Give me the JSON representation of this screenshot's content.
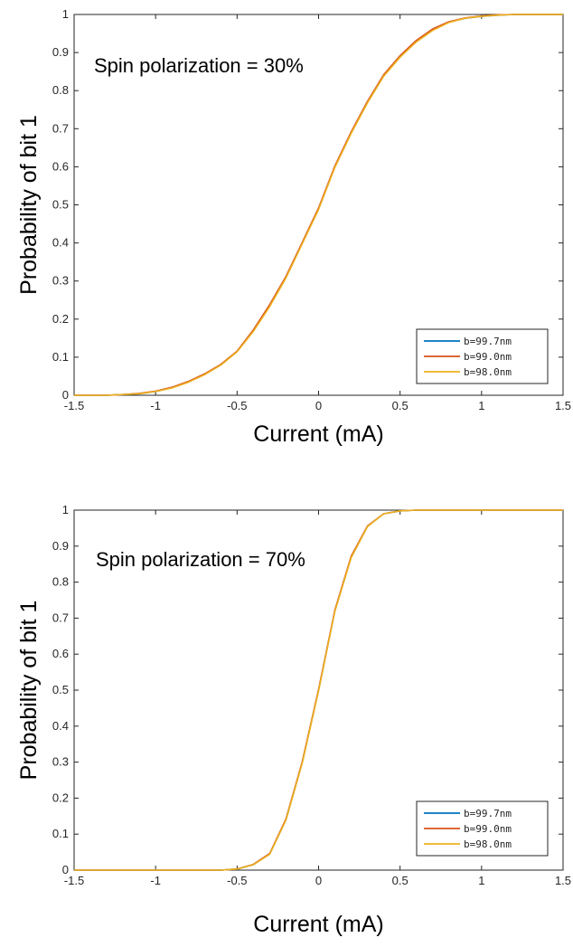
{
  "chart_data": [
    {
      "type": "line",
      "annotation": "Spin polarization = 30%",
      "xlabel": "Current (mA)",
      "ylabel": "Probability of bit 1",
      "xlim": [
        -1.5,
        1.5
      ],
      "ylim": [
        0,
        1
      ],
      "xticks": [
        "-1.5",
        "-1",
        "-0.5",
        "0",
        "0.5",
        "1",
        "1.5"
      ],
      "yticks": [
        "0",
        "0.1",
        "0.2",
        "0.3",
        "0.4",
        "0.5",
        "0.6",
        "0.7",
        "0.8",
        "0.9",
        "1"
      ],
      "grid": false,
      "legend_position": "bottom-right",
      "x": [
        -1.5,
        -1.3,
        -1.2,
        -1.1,
        -1.0,
        -0.9,
        -0.8,
        -0.7,
        -0.6,
        -0.5,
        -0.4,
        -0.3,
        -0.2,
        -0.1,
        0.0,
        0.1,
        0.2,
        0.3,
        0.4,
        0.5,
        0.6,
        0.7,
        0.8,
        0.9,
        1.0,
        1.1,
        1.2,
        1.3,
        1.5
      ],
      "series": [
        {
          "name": "b=99.7nm",
          "color": "#0072BD",
          "values": [
            0,
            0,
            0.002,
            0.004,
            0.01,
            0.02,
            0.035,
            0.055,
            0.08,
            0.115,
            0.17,
            0.235,
            0.31,
            0.4,
            0.49,
            0.6,
            0.69,
            0.77,
            0.84,
            0.89,
            0.93,
            0.96,
            0.98,
            0.99,
            0.995,
            0.998,
            1,
            1,
            1
          ]
        },
        {
          "name": "b=99.0nm",
          "color": "#D95319",
          "values": [
            0,
            0,
            0.002,
            0.005,
            0.011,
            0.021,
            0.036,
            0.056,
            0.081,
            0.116,
            0.172,
            0.238,
            0.312,
            0.402,
            0.492,
            0.602,
            0.692,
            0.772,
            0.842,
            0.892,
            0.932,
            0.962,
            0.981,
            0.991,
            0.996,
            0.999,
            1,
            1,
            1
          ]
        },
        {
          "name": "b=98.0nm",
          "color": "#EDB120",
          "values": [
            0,
            0,
            0.002,
            0.004,
            0.01,
            0.019,
            0.034,
            0.054,
            0.079,
            0.114,
            0.168,
            0.233,
            0.308,
            0.398,
            0.488,
            0.598,
            0.688,
            0.768,
            0.838,
            0.888,
            0.928,
            0.958,
            0.979,
            0.99,
            0.995,
            0.998,
            1,
            1,
            1
          ]
        }
      ]
    },
    {
      "type": "line",
      "annotation": "Spin polarization = 70%",
      "xlabel": "Current (mA)",
      "ylabel": "Probability of bit 1",
      "xlim": [
        -1.5,
        1.5
      ],
      "ylim": [
        0,
        1
      ],
      "xticks": [
        "-1.5",
        "-1",
        "-0.5",
        "0",
        "0.5",
        "1",
        "1.5"
      ],
      "yticks": [
        "0",
        "0.1",
        "0.2",
        "0.3",
        "0.4",
        "0.5",
        "0.6",
        "0.7",
        "0.8",
        "0.9",
        "1"
      ],
      "grid": false,
      "legend_position": "bottom-right",
      "x": [
        -1.5,
        -1.0,
        -0.6,
        -0.5,
        -0.4,
        -0.3,
        -0.2,
        -0.1,
        0.0,
        0.1,
        0.2,
        0.3,
        0.4,
        0.5,
        0.6,
        1.0,
        1.5
      ],
      "series": [
        {
          "name": "b=99.7nm",
          "color": "#0072BD",
          "values": [
            0,
            0,
            0,
            0.003,
            0.015,
            0.045,
            0.14,
            0.3,
            0.5,
            0.72,
            0.87,
            0.955,
            0.99,
            0.998,
            1,
            1,
            1
          ]
        },
        {
          "name": "b=99.0nm",
          "color": "#D95319",
          "values": [
            0,
            0,
            0,
            0.003,
            0.016,
            0.046,
            0.142,
            0.302,
            0.502,
            0.722,
            0.872,
            0.956,
            0.99,
            0.998,
            1,
            1,
            1
          ]
        },
        {
          "name": "b=98.0nm",
          "color": "#EDB120",
          "values": [
            0,
            0,
            0,
            0.003,
            0.015,
            0.044,
            0.139,
            0.298,
            0.498,
            0.718,
            0.868,
            0.954,
            0.99,
            0.998,
            1,
            1,
            1
          ]
        }
      ]
    }
  ]
}
